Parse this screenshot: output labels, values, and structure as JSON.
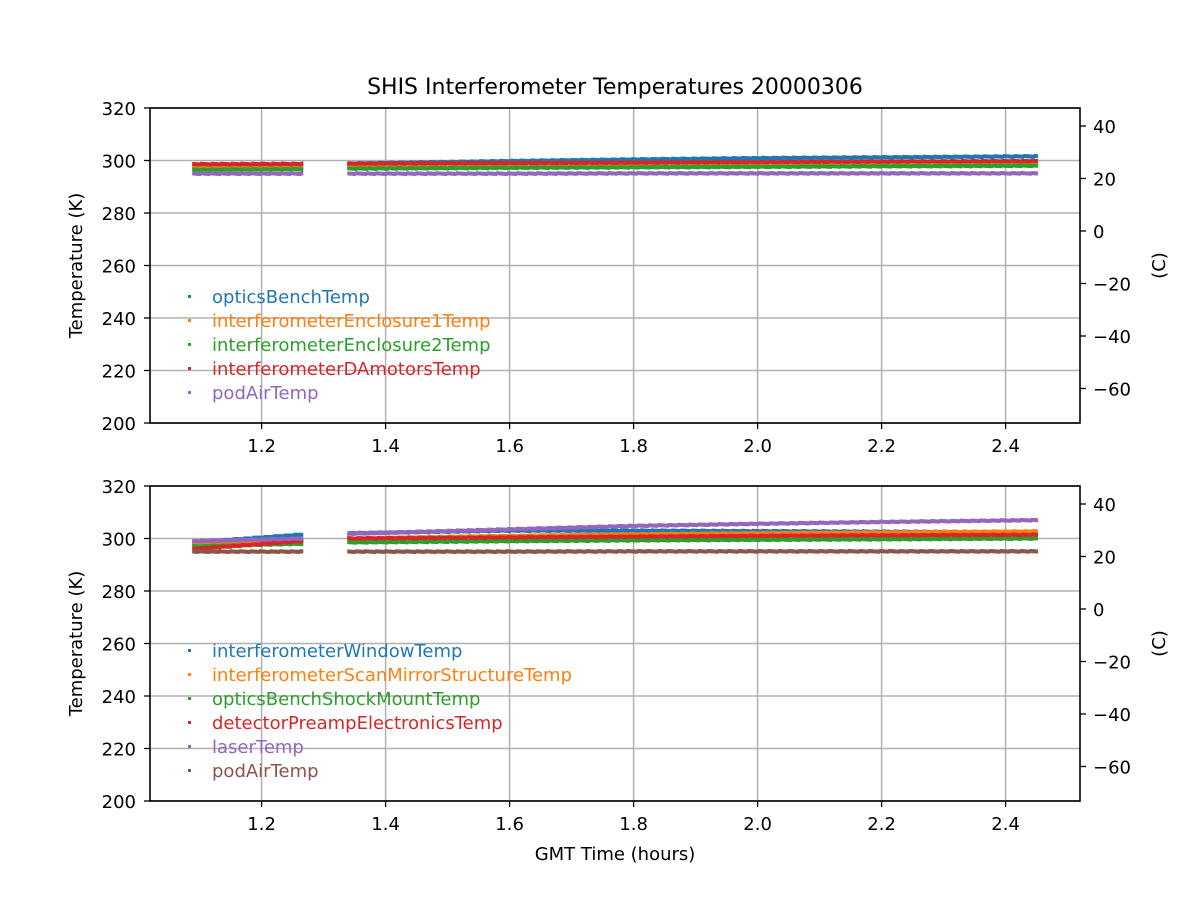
{
  "figure": {
    "title": "SHIS Interferometer Temperatures 20000306"
  },
  "chart_data": [
    {
      "type": "scatter",
      "title": "SHIS Interferometer Temperatures 20000306",
      "xlabel": "",
      "ylabel": "Temperature (K)",
      "ylabel_right": "(C)",
      "xlim": [
        1.02,
        2.52
      ],
      "ylim": [
        200,
        320
      ],
      "ylim_right": [
        -73.15,
        46.85
      ],
      "x_ticks": [
        1.2,
        1.4,
        1.6,
        1.8,
        2.0,
        2.2,
        2.4
      ],
      "x_tick_labels": [
        "1.2",
        "1.4",
        "1.6",
        "1.8",
        "2.0",
        "2.2",
        "2.4"
      ],
      "y_ticks": [
        200,
        220,
        240,
        260,
        280,
        300,
        320
      ],
      "y_tick_labels": [
        "200",
        "220",
        "240",
        "260",
        "280",
        "300",
        "320"
      ],
      "y_right_ticks": [
        -60,
        -40,
        -20,
        0,
        20,
        40
      ],
      "y_right_tick_labels": [
        "−60",
        "−40",
        "−20",
        "0",
        "20",
        "40"
      ],
      "grid": true,
      "legend_position": "lower-left",
      "segments": [
        [
          1.09,
          1.265
        ],
        [
          1.34,
          2.45
        ]
      ],
      "series": [
        {
          "name": "opticsBenchTemp",
          "color": "#1f77b4",
          "x": [
            1.09,
            1.265,
            1.34,
            1.6,
            1.8,
            2.0,
            2.2,
            2.45
          ],
          "values": [
            298.0,
            298.3,
            298.8,
            299.8,
            300.4,
            300.9,
            301.2,
            301.6
          ]
        },
        {
          "name": "interferometerEnclosure1Temp",
          "color": "#ff7f0e",
          "x": [
            1.09,
            1.265,
            1.34,
            1.6,
            1.8,
            2.0,
            2.2,
            2.45
          ],
          "values": [
            297.0,
            297.1,
            297.2,
            297.5,
            297.7,
            297.9,
            298.1,
            298.4
          ]
        },
        {
          "name": "interferometerEnclosure2Temp",
          "color": "#2ca02c",
          "x": [
            1.09,
            1.265,
            1.34,
            1.6,
            1.8,
            2.0,
            2.2,
            2.45
          ],
          "values": [
            296.5,
            296.7,
            296.9,
            297.2,
            297.4,
            297.6,
            297.8,
            298.0
          ]
        },
        {
          "name": "interferometerDAmotorsTemp",
          "color": "#d62728",
          "x": [
            1.09,
            1.265,
            1.34,
            1.6,
            1.8,
            2.0,
            2.2,
            2.45
          ],
          "values": [
            298.6,
            298.7,
            298.8,
            299.0,
            299.2,
            299.4,
            299.6,
            299.8
          ]
        },
        {
          "name": "podAirTemp",
          "color": "#9467bd",
          "x": [
            1.09,
            1.265,
            1.34,
            1.6,
            1.8,
            2.0,
            2.2,
            2.45
          ],
          "values": [
            295.0,
            295.0,
            295.0,
            295.0,
            295.1,
            295.1,
            295.1,
            295.1
          ]
        }
      ]
    },
    {
      "type": "scatter",
      "title": "",
      "xlabel": "GMT Time (hours)",
      "ylabel": "Temperature (K)",
      "ylabel_right": "(C)",
      "xlim": [
        1.02,
        2.52
      ],
      "ylim": [
        200,
        320
      ],
      "ylim_right": [
        -73.15,
        46.85
      ],
      "x_ticks": [
        1.2,
        1.4,
        1.6,
        1.8,
        2.0,
        2.2,
        2.4
      ],
      "x_tick_labels": [
        "1.2",
        "1.4",
        "1.6",
        "1.8",
        "2.0",
        "2.2",
        "2.4"
      ],
      "y_ticks": [
        200,
        220,
        240,
        260,
        280,
        300,
        320
      ],
      "y_tick_labels": [
        "200",
        "220",
        "240",
        "260",
        "280",
        "300",
        "320"
      ],
      "y_right_ticks": [
        -60,
        -40,
        -20,
        0,
        20,
        40
      ],
      "y_right_tick_labels": [
        "−60",
        "−40",
        "−20",
        "0",
        "20",
        "40"
      ],
      "grid": true,
      "legend_position": "lower-left",
      "segments": [
        [
          1.09,
          1.265
        ],
        [
          1.34,
          2.45
        ]
      ],
      "series": [
        {
          "name": "interferometerWindowTemp",
          "color": "#1f77b4",
          "x": [
            1.09,
            1.265,
            1.34,
            1.6,
            1.8,
            2.0,
            2.2,
            2.45
          ],
          "values": [
            298.5,
            301.5,
            302.0,
            303.0,
            303.0,
            302.8,
            302.6,
            302.4
          ]
        },
        {
          "name": "interferometerScanMirrorStructureTemp",
          "color": "#ff7f0e",
          "x": [
            1.09,
            1.265,
            1.34,
            1.6,
            1.8,
            2.0,
            2.2,
            2.45
          ],
          "values": [
            297.5,
            299.0,
            300.0,
            301.0,
            301.6,
            302.0,
            302.3,
            302.7
          ]
        },
        {
          "name": "opticsBenchShockMountTemp",
          "color": "#2ca02c",
          "x": [
            1.09,
            1.265,
            1.34,
            1.6,
            1.8,
            2.0,
            2.2,
            2.45
          ],
          "values": [
            297.0,
            298.0,
            298.5,
            299.0,
            299.3,
            299.5,
            299.7,
            300.0
          ]
        },
        {
          "name": "detectorPreampElectronicsTemp",
          "color": "#d62728",
          "x": [
            1.09,
            1.265,
            1.34,
            1.6,
            1.8,
            2.0,
            2.2,
            2.45
          ],
          "values": [
            296.0,
            299.0,
            300.0,
            300.4,
            300.7,
            301.0,
            301.2,
            301.4
          ]
        },
        {
          "name": "laserTemp",
          "color": "#9467bd",
          "x": [
            1.09,
            1.265,
            1.34,
            1.6,
            1.8,
            2.0,
            2.2,
            2.45
          ],
          "values": [
            299.0,
            300.0,
            301.8,
            303.5,
            304.8,
            305.6,
            306.3,
            307.0
          ]
        },
        {
          "name": "podAirTemp",
          "color": "#8c564b",
          "x": [
            1.09,
            1.265,
            1.34,
            1.6,
            1.8,
            2.0,
            2.2,
            2.45
          ],
          "values": [
            295.0,
            295.0,
            295.0,
            295.0,
            295.1,
            295.1,
            295.1,
            295.1
          ]
        }
      ]
    }
  ]
}
